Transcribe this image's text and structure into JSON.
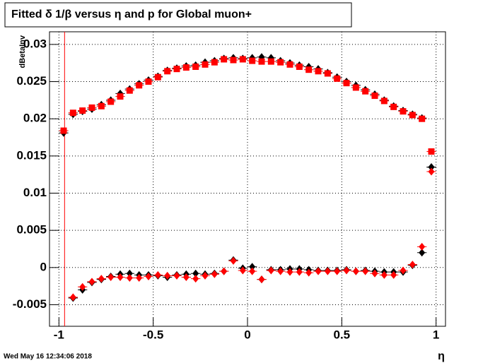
{
  "chart_data": {
    "type": "scatter",
    "title": "Fitted δ 1/β versus η and p for Global muon+",
    "x_label": "η",
    "y_label": "dBetaInv",
    "timestamp": "Wed May 16 12:34:06 2018",
    "x": [
      -0.975,
      -0.925,
      -0.875,
      -0.825,
      -0.775,
      -0.725,
      -0.675,
      -0.625,
      -0.575,
      -0.525,
      -0.475,
      -0.425,
      -0.375,
      -0.325,
      -0.275,
      -0.225,
      -0.175,
      -0.125,
      -0.075,
      -0.025,
      0.025,
      0.075,
      0.125,
      0.175,
      0.225,
      0.275,
      0.325,
      0.375,
      0.425,
      0.475,
      0.525,
      0.575,
      0.625,
      0.675,
      0.725,
      0.775,
      0.825,
      0.875,
      0.925,
      0.975
    ],
    "xerr": 0.025,
    "series": [
      {
        "color": "#000000",
        "marker": "diamond",
        "values": [
          0.0181,
          0.0206,
          0.021,
          0.0213,
          0.0219,
          0.0225,
          0.0234,
          0.024,
          0.0247,
          0.0252,
          0.0257,
          0.0265,
          0.0268,
          0.0271,
          0.0272,
          0.0276,
          0.0278,
          0.0281,
          0.0282,
          0.0281,
          0.0282,
          0.0283,
          0.0282,
          0.0278,
          0.0275,
          0.0272,
          0.027,
          0.0267,
          0.0262,
          0.0256,
          0.025,
          0.0245,
          0.0239,
          0.0233,
          0.0225,
          0.0217,
          0.0211,
          0.0206,
          0.0201,
          0.0135
        ]
      },
      {
        "color": "#ff0000",
        "marker": "square",
        "values": [
          0.0184,
          0.0208,
          0.0211,
          0.0215,
          0.0217,
          0.0223,
          0.023,
          0.0238,
          0.0245,
          0.025,
          0.0256,
          0.0264,
          0.0267,
          0.0269,
          0.027,
          0.0273,
          0.0276,
          0.028,
          0.0279,
          0.028,
          0.0278,
          0.0277,
          0.0277,
          0.0276,
          0.0273,
          0.027,
          0.0266,
          0.0264,
          0.0261,
          0.0254,
          0.0248,
          0.0242,
          0.0237,
          0.0231,
          0.0224,
          0.0216,
          0.021,
          0.0205,
          0.02,
          0.0156
        ]
      },
      {
        "color": "#000000",
        "marker": "diamond",
        "values": [
          null,
          -0.0041,
          -0.003,
          -0.002,
          -0.0016,
          -0.0012,
          -0.0009,
          -0.0008,
          -0.001,
          -0.001,
          -0.0011,
          -0.0013,
          -0.001,
          -0.0009,
          -0.0008,
          -0.0009,
          -0.0008,
          -0.0005,
          0.001,
          -0.0001,
          0.0001,
          -0.0016,
          -0.0003,
          -0.0003,
          -0.0002,
          -0.0002,
          -0.0003,
          -0.0004,
          -0.0004,
          -0.0004,
          -0.0003,
          -0.0005,
          -0.0004,
          -0.0005,
          -0.0006,
          -0.0006,
          -0.0006,
          0.0003,
          0.002,
          0.0135
        ]
      },
      {
        "color": "#ff0000",
        "marker": "diamond",
        "values": [
          null,
          -0.004,
          -0.0026,
          -0.0019,
          -0.0015,
          -0.0013,
          -0.0013,
          -0.0014,
          -0.0014,
          -0.0012,
          -0.001,
          -0.0011,
          -0.0011,
          -0.0013,
          -0.0015,
          -0.0011,
          -0.0009,
          -0.0005,
          0.0009,
          -0.0004,
          -0.0005,
          -0.0016,
          -0.0004,
          -0.0005,
          -0.0006,
          -0.0006,
          -0.0007,
          -0.0005,
          -0.0005,
          -0.0005,
          -0.0004,
          -0.0005,
          -0.0005,
          -0.0008,
          -0.001,
          -0.001,
          -0.0004,
          0.0004,
          0.0028,
          0.0129
        ]
      }
    ],
    "vline": {
      "x": -0.97,
      "color": "#ff0000"
    },
    "xlim": [
      -1.05,
      1.05
    ],
    "ylim": [
      -0.0079,
      0.0317
    ],
    "xticks": [
      -1,
      -0.5,
      0,
      0.5,
      1
    ],
    "yticks": [
      -0.005,
      0,
      0.005,
      0.01,
      0.015,
      0.02,
      0.025,
      0.03
    ],
    "grid": true
  }
}
